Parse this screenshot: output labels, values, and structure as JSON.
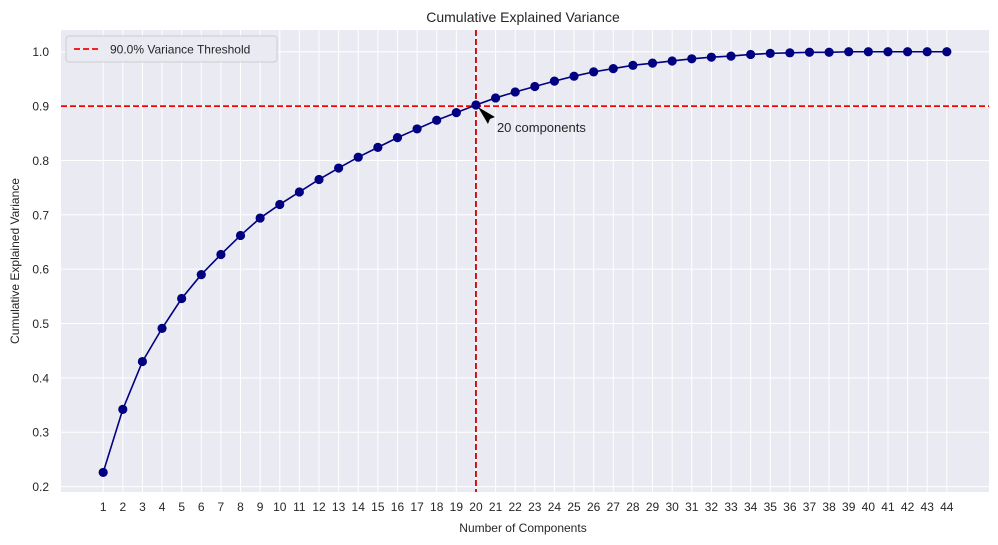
{
  "chart_data": {
    "type": "line",
    "title": "Cumulative Explained Variance",
    "xlabel": "Number of Components",
    "ylabel": "Cumulative Explained Variance",
    "x": [
      1,
      2,
      3,
      4,
      5,
      6,
      7,
      8,
      9,
      10,
      11,
      12,
      13,
      14,
      15,
      16,
      17,
      18,
      19,
      20,
      21,
      22,
      23,
      24,
      25,
      26,
      27,
      28,
      29,
      30,
      31,
      32,
      33,
      34,
      35,
      36,
      37,
      38,
      39,
      40,
      41,
      42,
      43,
      44
    ],
    "x_tick_labels": [
      "1",
      "2",
      "3",
      "4",
      "5",
      "6",
      "7",
      "8",
      "9",
      "10",
      "11",
      "12",
      "13",
      "14",
      "15",
      "16",
      "17",
      "18",
      "19",
      "20",
      "21",
      "22",
      "23",
      "24",
      "25",
      "26",
      "27",
      "28",
      "29",
      "30",
      "31",
      "32",
      "33",
      "34",
      "35",
      "36",
      "37",
      "38",
      "39",
      "40",
      "41",
      "42",
      "43",
      "44"
    ],
    "series": [
      {
        "values": [
          0.226,
          0.342,
          0.43,
          0.491,
          0.546,
          0.59,
          0.627,
          0.662,
          0.694,
          0.719,
          0.742,
          0.765,
          0.786,
          0.806,
          0.824,
          0.842,
          0.858,
          0.874,
          0.888,
          0.902,
          0.915,
          0.926,
          0.936,
          0.946,
          0.955,
          0.963,
          0.969,
          0.975,
          0.979,
          0.983,
          0.987,
          0.99,
          0.992,
          0.995,
          0.997,
          0.998,
          0.999,
          0.999,
          1.0,
          1.0,
          1.0,
          1.0,
          1.0,
          1.0
        ],
        "color": "#000080",
        "marker": "circle"
      }
    ],
    "xlim": [
      -1.15,
      46.15
    ],
    "ylim": [
      0.19,
      1.04
    ],
    "y_ticks": [
      0.2,
      0.3,
      0.4,
      0.5,
      0.6,
      0.7,
      0.8,
      0.9,
      1.0
    ],
    "y_tick_labels": [
      "0.2",
      "0.3",
      "0.4",
      "0.5",
      "0.6",
      "0.7",
      "0.8",
      "0.9",
      "1.0"
    ],
    "threshold": {
      "y": 0.9,
      "label": "90.0% Variance Threshold",
      "color": "#ff0000",
      "style": "dashed"
    },
    "vline": {
      "x": 20,
      "color": "#cc0000",
      "style": "dashed"
    },
    "annotation": {
      "text": "20 components",
      "x": 20,
      "y": 0.902
    },
    "legend": {
      "position": "top-left"
    },
    "grid": true,
    "background": "#eaeaf2"
  }
}
